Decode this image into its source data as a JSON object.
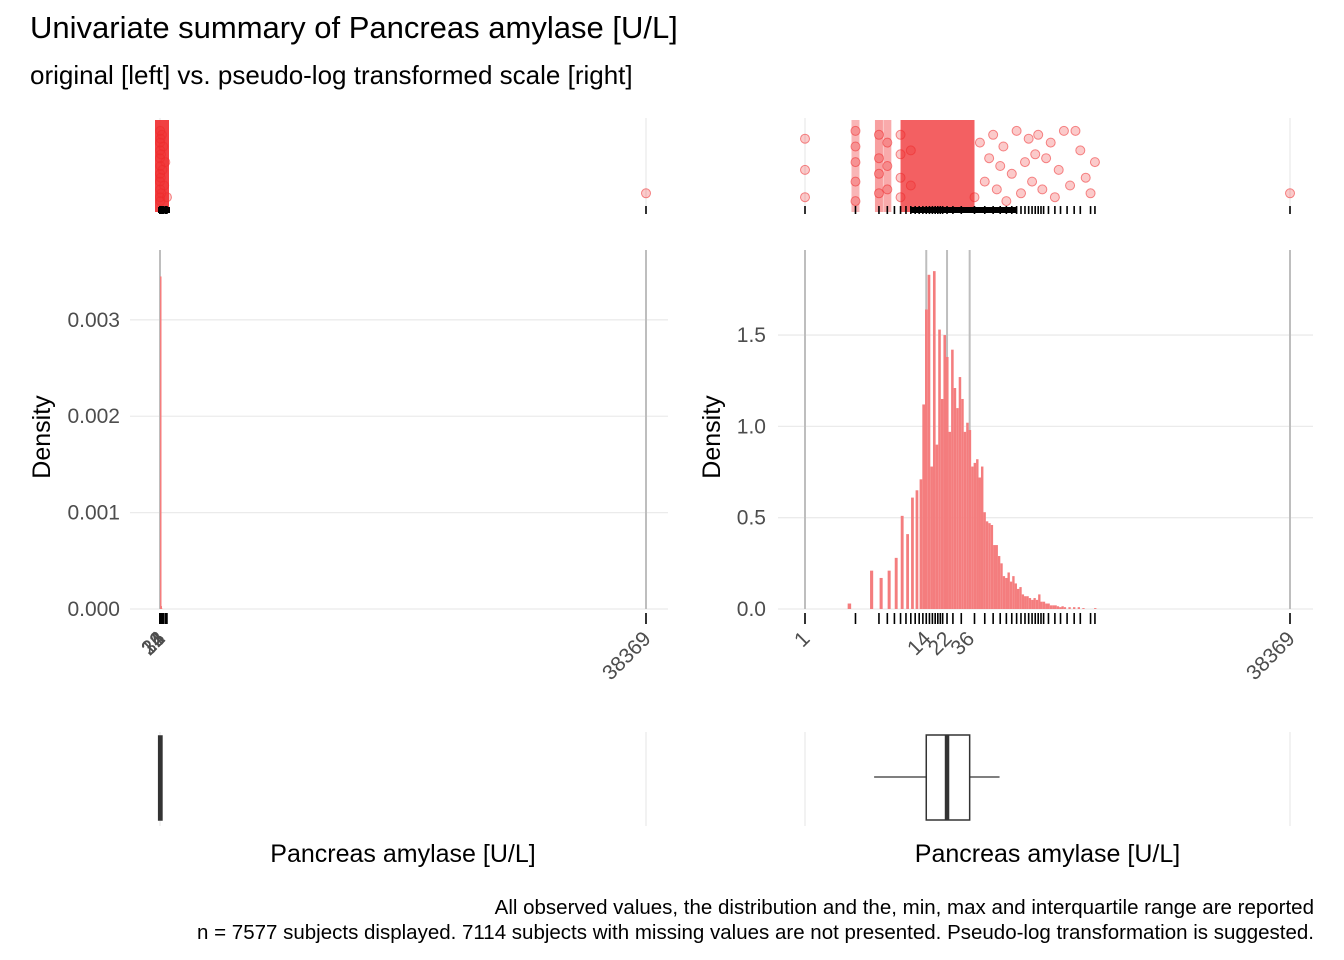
{
  "title": "Univariate summary of Pancreas amylase [U/L]",
  "subtitle": "original [left] vs. pseudo-log transformed scale [right]",
  "caption_line1": "All observed values, the distribution and the, min, max and interquartile range are reported",
  "caption_line2": "n = 7577 subjects displayed. 7114 subjects with missing values are not presented. Pseudo-log transformation is suggested.",
  "colors": {
    "points": "#ef2b2d",
    "bars": "#f47d7e",
    "grid": "#ebebeb",
    "vline": "#bebebe",
    "box": "#333333"
  },
  "chart_data": [
    {
      "type": "bar",
      "panel": "original",
      "title": "",
      "xlabel": "Pancreas amylase [U/L]",
      "ylabel": "Density",
      "xlim": [
        1,
        38369
      ],
      "ylim": [
        0,
        0.0036
      ],
      "y_ticks": [
        0,
        0.001,
        0.002,
        0.003
      ],
      "y_tick_labels": [
        "0.000",
        "0.001",
        "0.002",
        "0.003"
      ],
      "x_ticks": [
        1,
        14,
        22,
        36,
        38369
      ],
      "x_tick_labels": [
        "1",
        "14",
        "22",
        "36",
        "38369"
      ],
      "bins": [
        {
          "x0": 0,
          "x1": 40,
          "density": 0.00345
        },
        {
          "x0": 40,
          "x1": 80,
          "density": 3e-05
        },
        {
          "x0": 80,
          "x1": 120,
          "density": 5e-06
        }
      ],
      "summary": {
        "min": 1,
        "q1": 14,
        "median": 22,
        "q3": 36,
        "max": 38369
      },
      "rug_values": [
        1,
        5,
        8,
        10,
        12,
        14,
        16,
        18,
        20,
        22,
        25,
        28,
        30,
        33,
        36,
        40,
        45,
        50,
        60,
        80,
        100,
        130,
        170,
        230,
        300,
        450,
        550,
        38369
      ],
      "jitter_points": [
        {
          "x": 1,
          "y": 0.3
        },
        {
          "x": 3,
          "y": 0.6
        },
        {
          "x": 6,
          "y": 0.1
        },
        {
          "x": 10,
          "y": 0.8
        },
        {
          "x": 14,
          "y": 0.4
        },
        {
          "x": 18,
          "y": 0.95
        },
        {
          "x": 22,
          "y": 0.2
        },
        {
          "x": 26,
          "y": 0.7
        },
        {
          "x": 30,
          "y": 0.5
        },
        {
          "x": 35,
          "y": 0.05
        },
        {
          "x": 45,
          "y": 0.85
        },
        {
          "x": 60,
          "y": 0.35
        },
        {
          "x": 80,
          "y": 0.65
        },
        {
          "x": 110,
          "y": 0.15
        },
        {
          "x": 150,
          "y": 0.9
        },
        {
          "x": 200,
          "y": 0.45
        },
        {
          "x": 260,
          "y": 0.75
        },
        {
          "x": 330,
          "y": 0.25
        },
        {
          "x": 420,
          "y": 0.55
        },
        {
          "x": 550,
          "y": 0.1
        },
        {
          "x": 38369,
          "y": 0.15
        }
      ]
    },
    {
      "type": "bar",
      "panel": "pseudo-log",
      "title": "",
      "xlabel": "Pancreas amylase [U/L]",
      "ylabel": "Density",
      "xlim": [
        1,
        38369
      ],
      "ylim": [
        0,
        1.9
      ],
      "y_ticks": [
        0,
        0.5,
        1.0,
        1.5
      ],
      "y_tick_labels": [
        "0.0",
        "0.5",
        "1.0",
        "1.5"
      ],
      "x_ticks": [
        1,
        14,
        22,
        36,
        38369
      ],
      "x_tick_labels": [
        "1",
        "14",
        "22",
        "36",
        "38369"
      ],
      "bins": [
        {
          "x0": 2.53,
          "x1": 2.73,
          "density": 0.03
        },
        {
          "x0": 4.12,
          "x1": 4.41,
          "density": 0.21
        },
        {
          "x0": 5.07,
          "x1": 5.42,
          "density": 0.17
        },
        {
          "x0": 6.04,
          "x1": 6.45,
          "density": 0.21
        },
        {
          "x0": 7.05,
          "x1": 7.51,
          "density": 0.28
        },
        {
          "x0": 8.03,
          "x1": 8.55,
          "density": 0.51
        },
        {
          "x0": 9.05,
          "x1": 9.61,
          "density": 0.41
        },
        {
          "x0": 10.06,
          "x1": 10.68,
          "density": 0.61
        },
        {
          "x0": 11.1,
          "x1": 11.78,
          "density": 0.65
        },
        {
          "x0": 12.11,
          "x1": 12.85,
          "density": 0.71
        },
        {
          "x0": 12.85,
          "x1": 13.62,
          "density": 1.12
        },
        {
          "x0": 13.62,
          "x1": 14.43,
          "density": 1.64
        },
        {
          "x0": 14.43,
          "x1": 15.29,
          "density": 1.83
        },
        {
          "x0": 15.29,
          "x1": 16.2,
          "density": 0.78
        },
        {
          "x0": 16.2,
          "x1": 17.16,
          "density": 1.85
        },
        {
          "x0": 17.16,
          "x1": 18.16,
          "density": 0.9
        },
        {
          "x0": 18.16,
          "x1": 19.22,
          "density": 1.53
        },
        {
          "x0": 19.22,
          "x1": 20.34,
          "density": 1.15
        },
        {
          "x0": 20.34,
          "x1": 21.51,
          "density": 1.5
        },
        {
          "x0": 21.51,
          "x1": 22.74,
          "density": 1.38
        },
        {
          "x0": 22.74,
          "x1": 24.04,
          "density": 0.97
        },
        {
          "x0": 24.04,
          "x1": 25.41,
          "density": 1.42
        },
        {
          "x0": 25.41,
          "x1": 26.85,
          "density": 1.21
        },
        {
          "x0": 26.85,
          "x1": 28.36,
          "density": 1.1
        },
        {
          "x0": 28.36,
          "x1": 29.95,
          "density": 1.27
        },
        {
          "x0": 29.95,
          "x1": 31.63,
          "density": 1.15
        },
        {
          "x0": 31.63,
          "x1": 33.39,
          "density": 0.97
        },
        {
          "x0": 33.39,
          "x1": 35.24,
          "density": 1.02
        },
        {
          "x0": 35.24,
          "x1": 37.19,
          "density": 0.98
        },
        {
          "x0": 37.19,
          "x1": 39.24,
          "density": 0.78
        },
        {
          "x0": 39.24,
          "x1": 41.4,
          "density": 0.8
        },
        {
          "x0": 41.4,
          "x1": 43.66,
          "density": 0.82
        },
        {
          "x0": 43.66,
          "x1": 46.05,
          "density": 0.72
        },
        {
          "x0": 46.05,
          "x1": 48.56,
          "density": 0.78
        },
        {
          "x0": 48.56,
          "x1": 51.2,
          "density": 0.53
        },
        {
          "x0": 51.2,
          "x1": 53.97,
          "density": 0.48
        },
        {
          "x0": 53.97,
          "x1": 56.89,
          "density": 0.47
        },
        {
          "x0": 56.89,
          "x1": 59.96,
          "density": 0.46
        },
        {
          "x0": 59.96,
          "x1": 63.19,
          "density": 0.35
        },
        {
          "x0": 63.19,
          "x1": 66.58,
          "density": 0.35
        },
        {
          "x0": 66.58,
          "x1": 70.15,
          "density": 0.29
        },
        {
          "x0": 70.15,
          "x1": 73.9,
          "density": 0.25
        },
        {
          "x0": 73.9,
          "x1": 77.84,
          "density": 0.18
        },
        {
          "x0": 77.84,
          "x1": 81.99,
          "density": 0.17
        },
        {
          "x0": 81.99,
          "x1": 86.35,
          "density": 0.2
        },
        {
          "x0": 86.35,
          "x1": 90.93,
          "density": 0.15
        },
        {
          "x0": 90.93,
          "x1": 95.74,
          "density": 0.18
        },
        {
          "x0": 95.74,
          "x1": 100.8,
          "density": 0.14
        },
        {
          "x0": 100.8,
          "x1": 106.12,
          "density": 0.11
        },
        {
          "x0": 106.12,
          "x1": 111.71,
          "density": 0.12
        },
        {
          "x0": 111.71,
          "x1": 117.6,
          "density": 0.08
        },
        {
          "x0": 117.6,
          "x1": 123.78,
          "density": 0.07
        },
        {
          "x0": 123.78,
          "x1": 130.28,
          "density": 0.07
        },
        {
          "x0": 130.28,
          "x1": 137.12,
          "density": 0.06
        },
        {
          "x0": 137.12,
          "x1": 144.3,
          "density": 0.05
        },
        {
          "x0": 144.3,
          "x1": 151.85,
          "density": 0.06
        },
        {
          "x0": 151.85,
          "x1": 159.79,
          "density": 0.05
        },
        {
          "x0": 159.79,
          "x1": 168.14,
          "density": 0.08
        },
        {
          "x0": 168.14,
          "x1": 176.91,
          "density": 0.04
        },
        {
          "x0": 176.91,
          "x1": 186.13,
          "density": 0.04
        },
        {
          "x0": 186.13,
          "x1": 195.83,
          "density": 0.03
        },
        {
          "x0": 195.83,
          "x1": 206.02,
          "density": 0.03
        },
        {
          "x0": 206.02,
          "x1": 216.73,
          "density": 0.02
        },
        {
          "x0": 216.73,
          "x1": 227.99,
          "density": 0.02
        },
        {
          "x0": 227.99,
          "x1": 239.83,
          "density": 0.02
        },
        {
          "x0": 239.83,
          "x1": 252.27,
          "density": 0.015
        },
        {
          "x0": 252.27,
          "x1": 265.35,
          "density": 0.01
        },
        {
          "x0": 265.35,
          "x1": 279.1,
          "density": 0.015
        },
        {
          "x0": 279.1,
          "x1": 293.56,
          "density": 0.01
        },
        {
          "x0": 308.76,
          "x1": 324.73,
          "density": 0.01
        },
        {
          "x0": 341.52,
          "x1": 359.16,
          "density": 0.01
        },
        {
          "x0": 377.71,
          "x1": 397.21,
          "density": 0.01
        },
        {
          "x0": 417.71,
          "x1": 439.26,
          "density": 0.005
        },
        {
          "x0": 540,
          "x1": 568,
          "density": 0.005
        }
      ],
      "summary": {
        "min": 1,
        "q1": 14,
        "median": 22,
        "q3": 36,
        "max": 38369
      },
      "rug_values": [
        1,
        3,
        5,
        6,
        7,
        8,
        9,
        10,
        11,
        12,
        13,
        14,
        15,
        16,
        17,
        18,
        19,
        20,
        22,
        25,
        30,
        40,
        50,
        60,
        70,
        80,
        90,
        100,
        110,
        120,
        130,
        140,
        150,
        160,
        170,
        180,
        200,
        230,
        260,
        300,
        350,
        400,
        500,
        550,
        38369
      ],
      "jitter_points": [
        {
          "x": 1,
          "y": 0.1
        },
        {
          "x": 1,
          "y": 0.45
        },
        {
          "x": 1,
          "y": 0.85
        },
        {
          "x": 3,
          "y": 0.05
        },
        {
          "x": 3,
          "y": 0.3
        },
        {
          "x": 3,
          "y": 0.55
        },
        {
          "x": 3,
          "y": 0.75
        },
        {
          "x": 3,
          "y": 0.95
        },
        {
          "x": 5,
          "y": 0.15
        },
        {
          "x": 5,
          "y": 0.4
        },
        {
          "x": 5,
          "y": 0.6
        },
        {
          "x": 5,
          "y": 0.9
        },
        {
          "x": 6,
          "y": 0.2
        },
        {
          "x": 6,
          "y": 0.5
        },
        {
          "x": 6,
          "y": 0.8
        },
        {
          "x": 8,
          "y": 0.1
        },
        {
          "x": 8,
          "y": 0.35
        },
        {
          "x": 8,
          "y": 0.65
        },
        {
          "x": 8,
          "y": 0.9
        },
        {
          "x": 10,
          "y": 0.25
        },
        {
          "x": 10,
          "y": 0.7
        },
        {
          "x": 40,
          "y": 0.1
        },
        {
          "x": 45,
          "y": 0.8
        },
        {
          "x": 50,
          "y": 0.3
        },
        {
          "x": 55,
          "y": 0.6
        },
        {
          "x": 60,
          "y": 0.9
        },
        {
          "x": 65,
          "y": 0.2
        },
        {
          "x": 70,
          "y": 0.5
        },
        {
          "x": 75,
          "y": 0.75
        },
        {
          "x": 80,
          "y": 0.05
        },
        {
          "x": 90,
          "y": 0.4
        },
        {
          "x": 100,
          "y": 0.95
        },
        {
          "x": 110,
          "y": 0.15
        },
        {
          "x": 120,
          "y": 0.55
        },
        {
          "x": 130,
          "y": 0.85
        },
        {
          "x": 140,
          "y": 0.3
        },
        {
          "x": 150,
          "y": 0.65
        },
        {
          "x": 160,
          "y": 0.9
        },
        {
          "x": 175,
          "y": 0.2
        },
        {
          "x": 190,
          "y": 0.6
        },
        {
          "x": 210,
          "y": 0.8
        },
        {
          "x": 230,
          "y": 0.1
        },
        {
          "x": 250,
          "y": 0.45
        },
        {
          "x": 280,
          "y": 0.95
        },
        {
          "x": 320,
          "y": 0.25
        },
        {
          "x": 360,
          "y": 0.95
        },
        {
          "x": 400,
          "y": 0.7
        },
        {
          "x": 450,
          "y": 0.35
        },
        {
          "x": 500,
          "y": 0.15
        },
        {
          "x": 550,
          "y": 0.55
        },
        {
          "x": 38369,
          "y": 0.15
        }
      ]
    }
  ]
}
